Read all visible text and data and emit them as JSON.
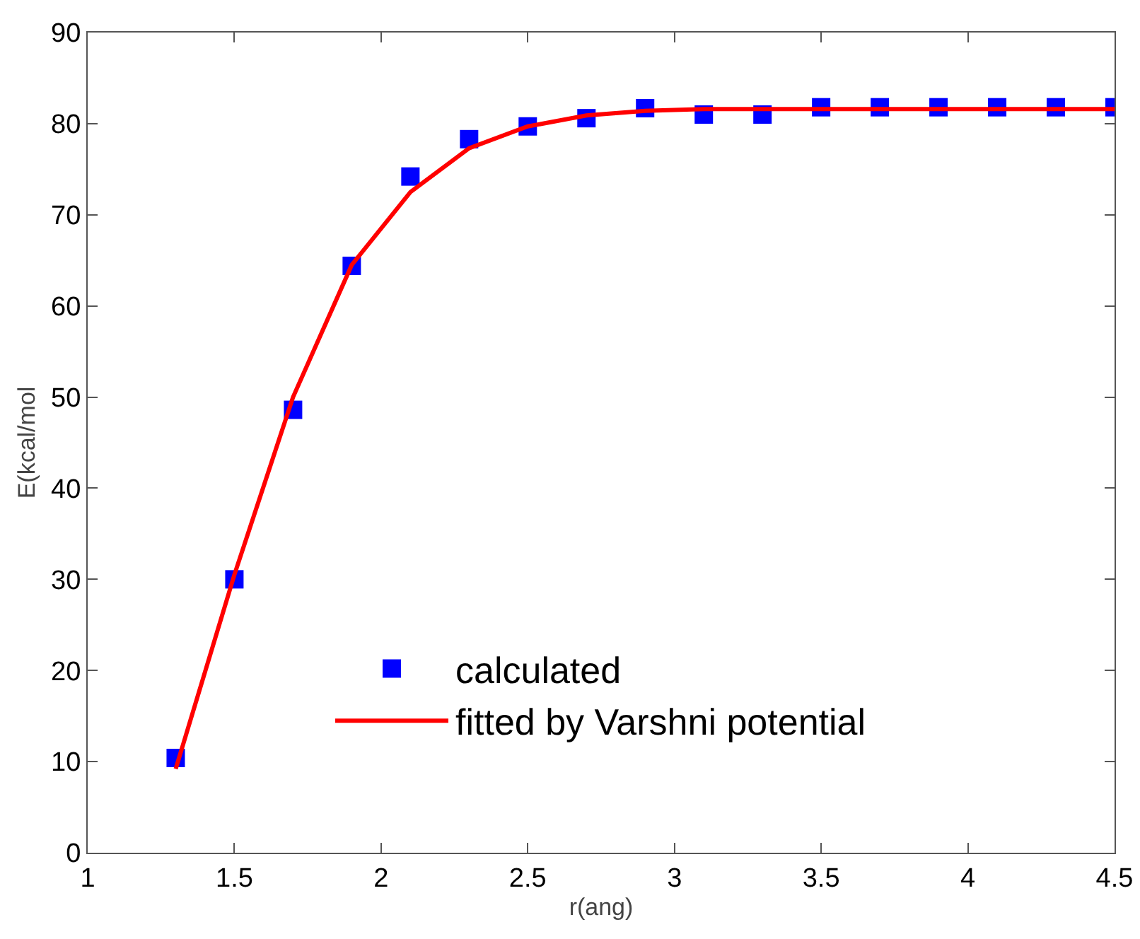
{
  "chart_data": {
    "type": "scatter",
    "xlabel": "r(ang)",
    "ylabel": "E(kcal/mol",
    "xlim": [
      1,
      4.5
    ],
    "xticks": [
      1,
      1.5,
      2,
      2.5,
      3,
      3.5,
      4,
      4.5
    ],
    "ylim": [
      0,
      90
    ],
    "yticks": [
      0,
      10,
      20,
      30,
      40,
      50,
      60,
      70,
      80,
      90
    ],
    "grid": false,
    "legend": "bottom",
    "series": [
      {
        "name": "calculated",
        "type": "scatter",
        "marker": "square",
        "color": "#0000ff",
        "x": [
          1.3,
          1.5,
          1.7,
          1.9,
          2.1,
          2.3,
          2.5,
          2.7,
          2.9,
          3.1,
          3.3,
          3.5,
          3.7,
          3.9,
          4.1,
          4.3,
          4.5
        ],
        "values": [
          10.4,
          30,
          48.6,
          64.4,
          74.2,
          78.3,
          79.7,
          80.6,
          81.7,
          81,
          81,
          81.8,
          81.8,
          81.8,
          81.8,
          81.8,
          81.8
        ]
      },
      {
        "name": "fitted by Varshni potential",
        "type": "line",
        "marker": "none",
        "line_style": "solid",
        "color": "#ff0000",
        "x": [
          1.3,
          1.5,
          1.7,
          1.9,
          2.1,
          2.3,
          2.5,
          2.7,
          2.9,
          3.1,
          3.5,
          4.5
        ],
        "values": [
          9.2,
          30.5,
          50,
          64.5,
          72.5,
          77.3,
          79.7,
          80.9,
          81.4,
          81.6,
          81.6,
          81.6
        ]
      }
    ]
  }
}
